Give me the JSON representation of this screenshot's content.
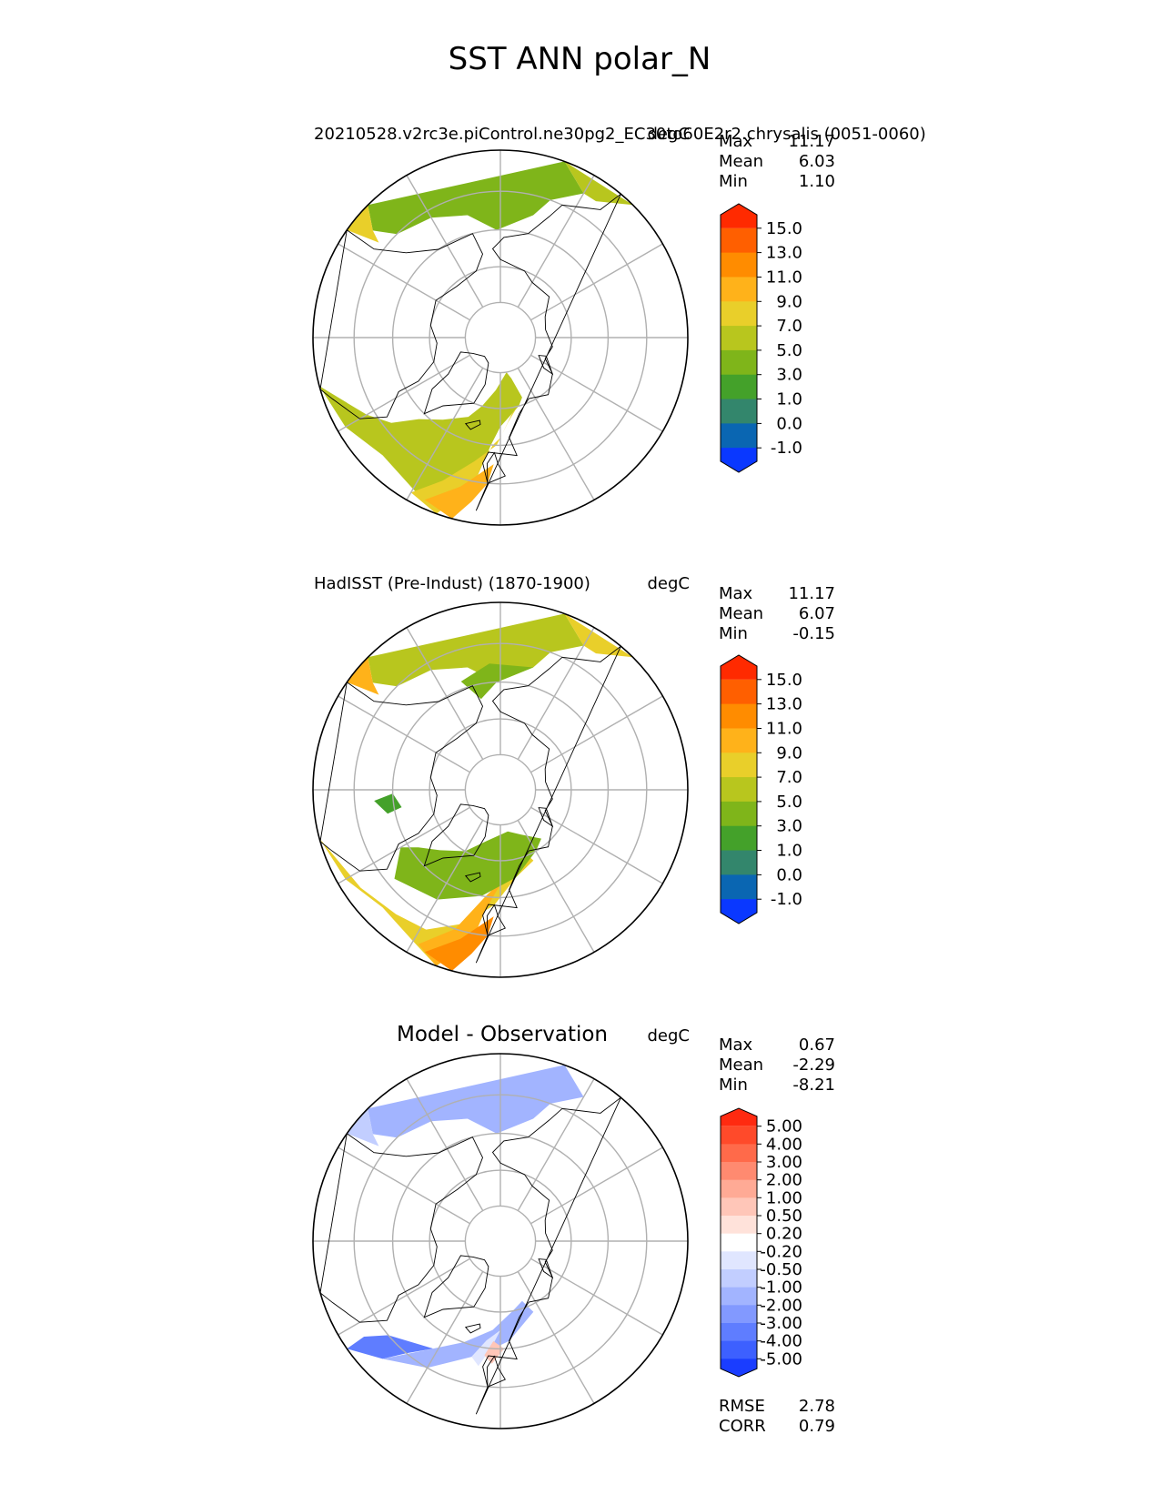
{
  "figure": {
    "title": "SST ANN polar_N"
  },
  "colors": {
    "land_outline": "#000000",
    "graticule": "#b0b0b0",
    "missing": "#ffffff"
  },
  "chart_data": [
    {
      "type": "heatmap",
      "projection": "north-polar-stereographic",
      "title_left": "20210528.v2rc3e.piControl.ne30pg2_EC30to60E2r2.chrysalis (0051-0060)",
      "title_right": "degC",
      "stats": [
        {
          "label": "Max",
          "value": "11.17"
        },
        {
          "label": "Mean",
          "value": "6.03"
        },
        {
          "label": "Min",
          "value": "1.10"
        }
      ],
      "colorbar": {
        "ticks": [
          "15.0",
          "13.0",
          "11.0",
          "9.0",
          "7.0",
          "5.0",
          "3.0",
          "1.0",
          "0.0",
          "-1.0"
        ],
        "colors": [
          "#ff2a00",
          "#ff5f00",
          "#ff8c00",
          "#ffb21a",
          "#e9cf2a",
          "#b8c61e",
          "#7fb51a",
          "#44a12a",
          "#33866c",
          "#0a66b2",
          "#0a38ff"
        ],
        "extend": "both"
      }
    },
    {
      "type": "heatmap",
      "projection": "north-polar-stereographic",
      "title_left": "HadISST (Pre-Indust) (1870-1900)",
      "title_right": "degC",
      "stats": [
        {
          "label": "Max",
          "value": "11.17"
        },
        {
          "label": "Mean",
          "value": "6.07"
        },
        {
          "label": "Min",
          "value": "-0.15"
        }
      ],
      "colorbar": {
        "ticks": [
          "15.0",
          "13.0",
          "11.0",
          "9.0",
          "7.0",
          "5.0",
          "3.0",
          "1.0",
          "0.0",
          "-1.0"
        ],
        "colors": [
          "#ff2a00",
          "#ff5f00",
          "#ff8c00",
          "#ffb21a",
          "#e9cf2a",
          "#b8c61e",
          "#7fb51a",
          "#44a12a",
          "#33866c",
          "#0a66b2",
          "#0a38ff"
        ],
        "extend": "both"
      }
    },
    {
      "type": "heatmap",
      "projection": "north-polar-stereographic",
      "title_center": "Model - Observation",
      "title_right": "degC",
      "stats": [
        {
          "label": "Max",
          "value": "0.67"
        },
        {
          "label": "Mean",
          "value": "-2.29"
        },
        {
          "label": "Min",
          "value": "-8.21"
        }
      ],
      "colorbar": {
        "ticks": [
          "5.00",
          "4.00",
          "3.00",
          "2.00",
          "1.00",
          "0.50",
          "0.20",
          "-0.20",
          "-0.50",
          "-1.00",
          "-2.00",
          "-3.00",
          "-4.00",
          "-5.00"
        ],
        "colors": [
          "#ff2a10",
          "#ff4a2a",
          "#ff6a4a",
          "#ff8a70",
          "#ffaa95",
          "#ffc6b8",
          "#ffe2da",
          "#ffffff",
          "#e0e6ff",
          "#c2ceff",
          "#a2b4ff",
          "#8299ff",
          "#5f7dff",
          "#3d60ff",
          "#1a3dff"
        ],
        "extend": "both"
      },
      "metrics": [
        {
          "label": "RMSE",
          "value": "2.78"
        },
        {
          "label": "CORR",
          "value": "0.79"
        }
      ]
    }
  ]
}
